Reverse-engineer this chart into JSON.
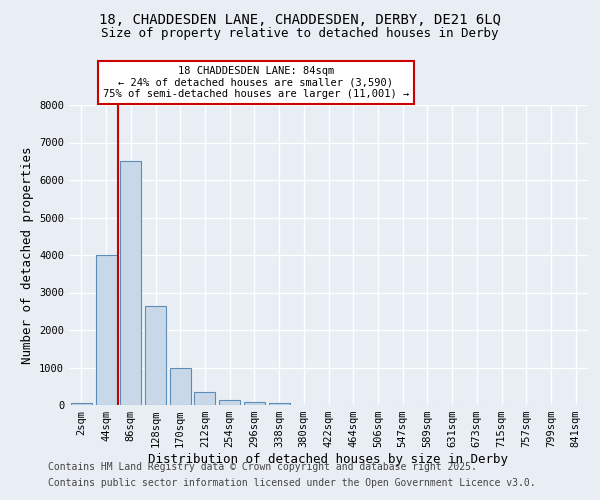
{
  "title_line1": "18, CHADDESDEN LANE, CHADDESDEN, DERBY, DE21 6LQ",
  "title_line2": "Size of property relative to detached houses in Derby",
  "xlabel": "Distribution of detached houses by size in Derby",
  "ylabel": "Number of detached properties",
  "bar_color": "#c8d8e8",
  "bar_edge_color": "#5b8db8",
  "background_color": "#e8eef4",
  "grid_color": "#ffffff",
  "categories": [
    "2sqm",
    "44sqm",
    "86sqm",
    "128sqm",
    "170sqm",
    "212sqm",
    "254sqm",
    "296sqm",
    "338sqm",
    "380sqm",
    "422sqm",
    "464sqm",
    "506sqm",
    "547sqm",
    "589sqm",
    "631sqm",
    "673sqm",
    "715sqm",
    "757sqm",
    "799sqm",
    "841sqm"
  ],
  "values": [
    50,
    4000,
    6500,
    2650,
    1000,
    350,
    130,
    70,
    50,
    0,
    0,
    0,
    0,
    0,
    0,
    0,
    0,
    0,
    0,
    0,
    0
  ],
  "ylim": [
    0,
    8000
  ],
  "yticks": [
    0,
    1000,
    2000,
    3000,
    4000,
    5000,
    6000,
    7000,
    8000
  ],
  "red_line_x": 1.5,
  "annotation_text": "18 CHADDESDEN LANE: 84sqm\n← 24% of detached houses are smaller (3,590)\n75% of semi-detached houses are larger (11,001) →",
  "annotation_box_color": "#cc0000",
  "footnote_line1": "Contains HM Land Registry data © Crown copyright and database right 2025.",
  "footnote_line2": "Contains public sector information licensed under the Open Government Licence v3.0.",
  "title_fontsize": 10,
  "subtitle_fontsize": 9,
  "axis_label_fontsize": 9,
  "tick_fontsize": 7.5,
  "annotation_fontsize": 7.5,
  "footnote_fontsize": 7
}
